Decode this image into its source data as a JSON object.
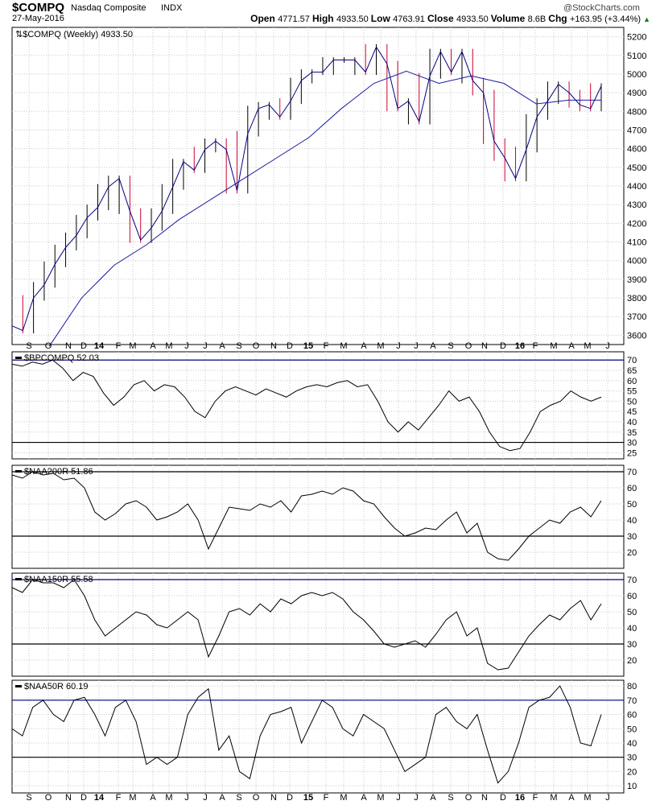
{
  "header": {
    "symbol": "$COMPQ",
    "name": "Nasdaq Composite",
    "exchange": "INDX",
    "date": "27-May-2016",
    "brand": "@StockCharts.com",
    "quote": [
      [
        "Open",
        "4771.57"
      ],
      [
        "High",
        "4933.50"
      ],
      [
        "Low",
        "4763.91"
      ],
      [
        "Close",
        "4933.50"
      ],
      [
        "Volume",
        "8.6B"
      ],
      [
        "Chg",
        "+163.95 (+3.44%)"
      ]
    ]
  },
  "colors": {
    "price": "#000080",
    "ma": "#1a1aa0",
    "down": "#cc0033",
    "grid": "#c8c8c8",
    "ref_line": "#000080"
  },
  "chart_data": [
    {
      "type": "line",
      "title": "$COMPQ (Weekly) 4933.50",
      "ylim": [
        3550,
        5250
      ],
      "yticks": [
        3600,
        3700,
        3800,
        3900,
        4000,
        4100,
        4200,
        4300,
        4400,
        4500,
        4600,
        4700,
        4800,
        4900,
        5000,
        5100,
        5200
      ],
      "series": [
        {
          "name": "close",
          "values": [
            3650,
            3625,
            3800,
            3870,
            3980,
            4070,
            4135,
            4230,
            4285,
            4395,
            4440,
            4265,
            4110,
            4175,
            4265,
            4395,
            4530,
            4485,
            4595,
            4640,
            4595,
            4375,
            4680,
            4815,
            4835,
            4770,
            4855,
            4965,
            5010,
            5010,
            5075,
            5075,
            5075,
            5010,
            5145,
            5055,
            4815,
            4855,
            4745,
            4990,
            5120,
            5010,
            5120,
            4965,
            4900,
            4640,
            4550,
            4440,
            4595,
            4770,
            4855,
            4945,
            4900,
            4835,
            4815,
            4935
          ]
        },
        {
          "name": "moving average",
          "start_fraction": 0.063,
          "values": [
            3540,
            3800,
            3975,
            4085,
            4220,
            4330,
            4440,
            4550,
            4660,
            4815,
            4950,
            5015,
            4950,
            4990,
            4950,
            4840,
            4860,
            4860
          ]
        }
      ]
    },
    {
      "type": "line",
      "title": "$BPCOMPQ 52.03",
      "ylim": [
        22,
        74
      ],
      "yticks": [
        25,
        30,
        35,
        40,
        45,
        50,
        55,
        60,
        65,
        70
      ],
      "hlines": [
        [
          70,
          "#000080"
        ],
        [
          30,
          "#000"
        ]
      ],
      "values": [
        68,
        67,
        69,
        68,
        70,
        66,
        60,
        64,
        62,
        54,
        48,
        52,
        58,
        60,
        55,
        58,
        57,
        52,
        45,
        42,
        50,
        55,
        57,
        55,
        53,
        56,
        54,
        52,
        55,
        57,
        58,
        57,
        59,
        60,
        57,
        58,
        50,
        40,
        35,
        40,
        36,
        42,
        48,
        55,
        50,
        52,
        45,
        35,
        28,
        26,
        27,
        35,
        45,
        48,
        50,
        55,
        52,
        50,
        52
      ]
    },
    {
      "type": "line",
      "title": "$NAA200R 51.86",
      "ylim": [
        10,
        74
      ],
      "yticks": [
        20,
        30,
        40,
        50,
        60,
        70
      ],
      "hlines": [
        [
          70,
          "#000"
        ],
        [
          30,
          "#000"
        ]
      ],
      "values": [
        68,
        66,
        70,
        68,
        69,
        65,
        66,
        60,
        45,
        40,
        44,
        50,
        52,
        48,
        40,
        42,
        45,
        50,
        40,
        22,
        35,
        48,
        47,
        46,
        50,
        48,
        52,
        45,
        55,
        56,
        58,
        56,
        60,
        58,
        52,
        50,
        42,
        35,
        30,
        32,
        35,
        34,
        40,
        45,
        32,
        38,
        20,
        16,
        15,
        22,
        30,
        35,
        40,
        38,
        45,
        48,
        42,
        52
      ]
    },
    {
      "type": "line",
      "title": "$NAA150R 55.58",
      "ylim": [
        10,
        74
      ],
      "yticks": [
        20,
        30,
        40,
        50,
        60,
        70
      ],
      "hlines": [
        [
          70,
          "#000080"
        ],
        [
          30,
          "#000"
        ]
      ],
      "values": [
        65,
        62,
        70,
        68,
        68,
        65,
        70,
        60,
        45,
        35,
        40,
        45,
        50,
        48,
        42,
        40,
        45,
        50,
        45,
        22,
        35,
        50,
        52,
        48,
        55,
        50,
        58,
        55,
        60,
        62,
        60,
        62,
        58,
        50,
        45,
        38,
        30,
        28,
        30,
        32,
        28,
        36,
        45,
        50,
        35,
        40,
        18,
        14,
        15,
        25,
        35,
        42,
        48,
        45,
        52,
        57,
        45,
        55
      ]
    },
    {
      "type": "line",
      "title": "$NAA50R 60.19",
      "ylim": [
        5,
        84
      ],
      "yticks": [
        10,
        20,
        30,
        40,
        50,
        60,
        70,
        80
      ],
      "hlines": [
        [
          70,
          "#000080"
        ],
        [
          30,
          "#000"
        ]
      ],
      "values": [
        50,
        45,
        65,
        70,
        60,
        55,
        70,
        72,
        60,
        45,
        65,
        70,
        55,
        25,
        30,
        25,
        30,
        60,
        72,
        78,
        35,
        45,
        20,
        15,
        45,
        60,
        62,
        65,
        40,
        55,
        70,
        65,
        50,
        45,
        60,
        55,
        50,
        35,
        20,
        25,
        30,
        60,
        65,
        55,
        50,
        60,
        35,
        12,
        20,
        40,
        65,
        70,
        72,
        80,
        65,
        40,
        38,
        60
      ]
    }
  ],
  "x_labels": [
    "S",
    "O",
    "N",
    "D",
    "14",
    "F",
    "M",
    "A",
    "M",
    "J",
    "J",
    "A",
    "S",
    "O",
    "N",
    "D",
    "15",
    "F",
    "M",
    "A",
    "M",
    "J",
    "J",
    "A",
    "S",
    "O",
    "N",
    "D",
    "16",
    "F",
    "M",
    "A",
    "M",
    "J"
  ]
}
